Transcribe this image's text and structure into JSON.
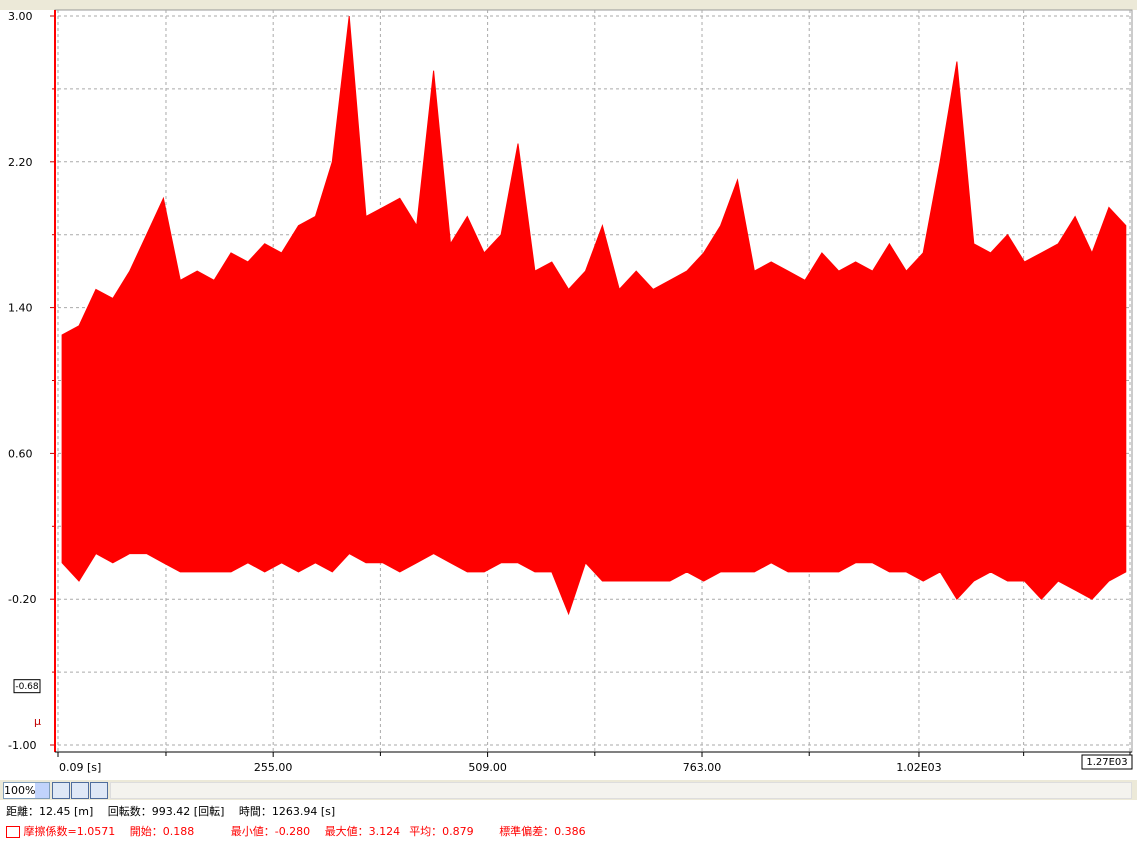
{
  "chart_data": {
    "type": "range-area",
    "x": [
      5,
      25,
      45,
      65,
      85,
      105,
      125,
      145,
      165,
      185,
      205,
      225,
      245,
      265,
      285,
      305,
      325,
      345,
      365,
      385,
      405,
      425,
      445,
      465,
      485,
      505,
      525,
      545,
      565,
      585,
      605,
      625,
      645,
      665,
      685,
      705,
      725,
      745,
      765,
      785,
      805,
      825,
      845,
      865,
      885,
      905,
      925,
      945,
      965,
      985,
      1005,
      1025,
      1045,
      1065,
      1085,
      1105,
      1125,
      1145,
      1165,
      1185,
      1205,
      1225,
      1245,
      1265
    ],
    "series": [
      {
        "name": "摩擦係数=1.0571",
        "color": "#ff0000",
        "high": [
          1.25,
          1.3,
          1.5,
          1.45,
          1.6,
          1.8,
          2.0,
          1.55,
          1.6,
          1.55,
          1.7,
          1.65,
          1.75,
          1.7,
          1.85,
          1.9,
          2.2,
          3.0,
          1.9,
          1.95,
          2.0,
          1.85,
          2.7,
          1.75,
          1.9,
          1.7,
          1.8,
          2.3,
          1.6,
          1.65,
          1.5,
          1.6,
          1.85,
          1.5,
          1.6,
          1.5,
          1.55,
          1.6,
          1.7,
          1.85,
          2.1,
          1.6,
          1.65,
          1.6,
          1.55,
          1.7,
          1.6,
          1.65,
          1.6,
          1.75,
          1.6,
          1.7,
          2.2,
          2.75,
          1.75,
          1.7,
          1.8,
          1.65,
          1.7,
          1.75,
          1.9,
          1.7,
          1.95,
          1.85
        ],
        "low": [
          0.0,
          -0.1,
          0.05,
          0.0,
          0.05,
          0.05,
          0.0,
          -0.05,
          -0.05,
          -0.05,
          -0.05,
          0.0,
          -0.05,
          0.0,
          -0.05,
          0.0,
          -0.05,
          0.05,
          0.0,
          0.0,
          -0.05,
          0.0,
          0.05,
          0.0,
          -0.05,
          -0.05,
          0.0,
          0.0,
          -0.05,
          -0.05,
          -0.28,
          0.0,
          -0.1,
          -0.1,
          -0.1,
          -0.1,
          -0.1,
          -0.05,
          -0.1,
          -0.05,
          -0.05,
          -0.05,
          0.0,
          -0.05,
          -0.05,
          -0.05,
          -0.05,
          0.0,
          0.0,
          -0.05,
          -0.05,
          -0.1,
          -0.05,
          -0.2,
          -0.1,
          -0.05,
          -0.1,
          -0.1,
          -0.2,
          -0.1,
          -0.15,
          -0.2,
          -0.1,
          -0.05
        ]
      }
    ],
    "xlim": [
      0.09,
      1270
    ],
    "ylim": [
      -1.0,
      3.0
    ],
    "yticks": [
      {
        "value": 3.0,
        "label": "3.00"
      },
      {
        "value": 2.2,
        "label": "2.20"
      },
      {
        "value": 1.4,
        "label": "1.40"
      },
      {
        "value": 0.6,
        "label": "0.60"
      },
      {
        "value": -0.2,
        "label": "-0.20"
      },
      {
        "value": -1.0,
        "label": "-1.00"
      }
    ],
    "y_minor_ticks": [
      2.6,
      1.8,
      1.0,
      0.2,
      -0.6
    ],
    "xticks": [
      {
        "value": 0.09,
        "label": "0.09 [s]"
      },
      {
        "value": 255,
        "label": "255.00"
      },
      {
        "value": 509,
        "label": "509.00"
      },
      {
        "value": 763,
        "label": "763.00"
      },
      {
        "value": 1020,
        "label": "1.02E03"
      },
      {
        "value": 1270,
        "label": "1.27E03"
      }
    ],
    "x_minor_ticks": [
      128,
      382,
      636,
      890,
      1144
    ],
    "cursor": {
      "value": -0.68,
      "label": "-0.68"
    },
    "ylabel": "μ",
    "grid": true
  },
  "toolbar": {
    "zoom": "100%"
  },
  "status": {
    "distance": "距離：12.45 [m]",
    "rotations": "回転数：993.42 [回転]",
    "time": "時間：1263.94 [s]"
  },
  "stats": {
    "start": "開始：0.188",
    "min": "最小値：-0.280",
    "max": "最大値：3.124",
    "mean": "平均：0.879",
    "std": "標準偏差：0.386"
  }
}
